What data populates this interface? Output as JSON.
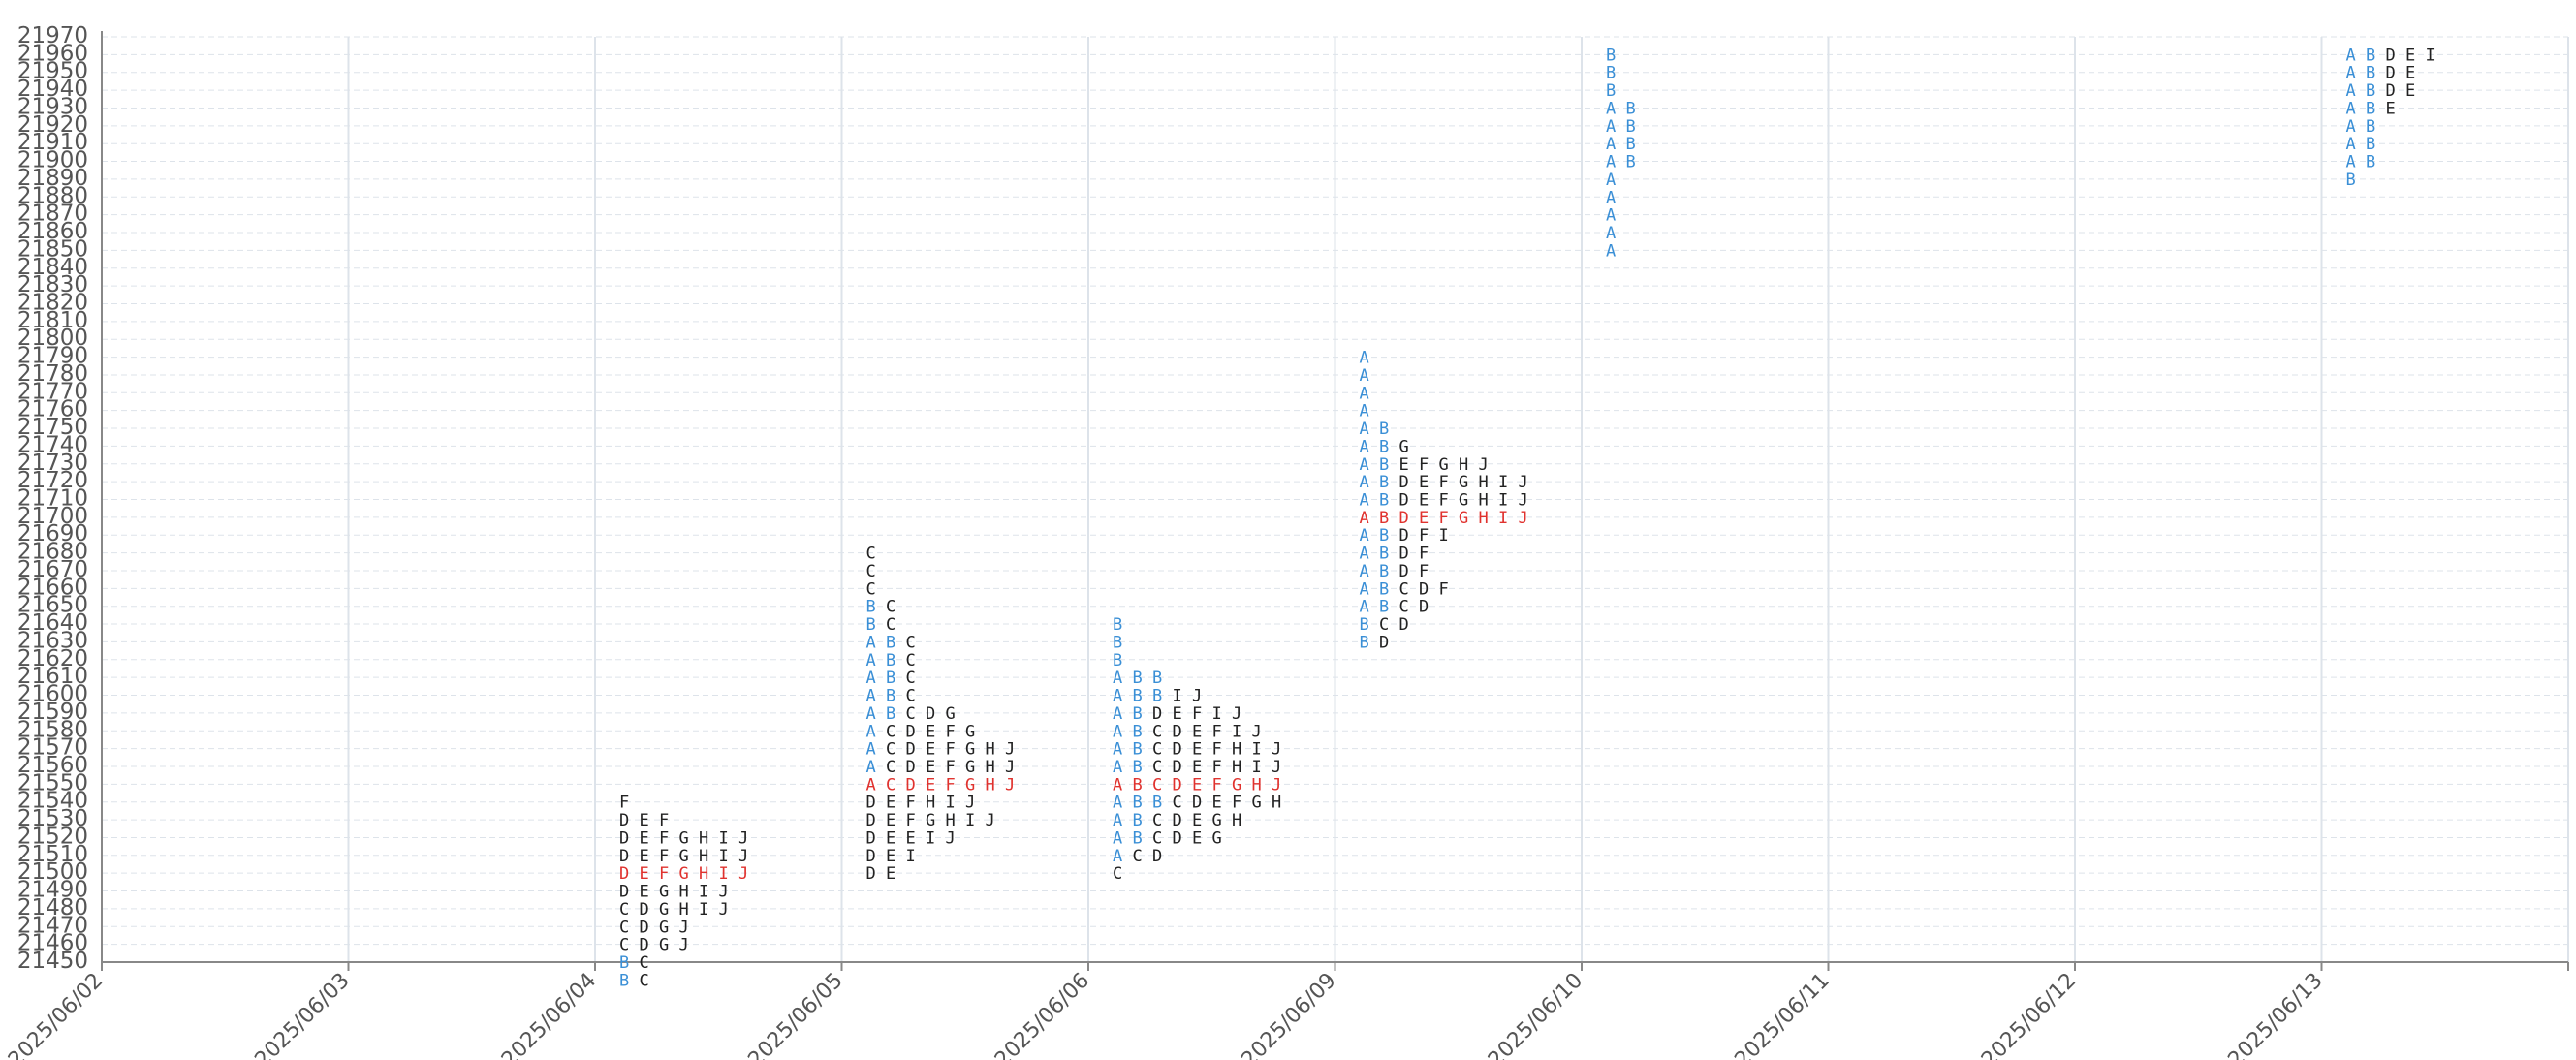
{
  "chart_data": {
    "type": "table",
    "title": "",
    "xlabel": "",
    "ylabel": "",
    "ylim": [
      2145,
      2197
    ],
    "ytick_step": 1,
    "yticks": [
      "2145",
      "2146",
      "2147",
      "2148",
      "2149",
      "2150",
      "2151",
      "2152",
      "2153",
      "2154",
      "2155",
      "2156",
      "2157",
      "2158",
      "2159",
      "2160",
      "2161",
      "2162",
      "2163",
      "2164",
      "2165",
      "2166",
      "2167",
      "2168",
      "2169",
      "2170",
      "2171",
      "2172",
      "2173",
      "2174",
      "2175",
      "2176",
      "2177",
      "2178",
      "2179",
      "2180",
      "2181",
      "2182",
      "2183",
      "2184",
      "2185",
      "2186",
      "2187",
      "2188",
      "2189",
      "2190",
      "2191",
      "2192",
      "2193",
      "2194",
      "2195",
      "2196",
      "2197"
    ],
    "categories": [
      "2025/06/02",
      "2025/06/03",
      "2025/06/04",
      "2025/06/05",
      "2025/06/06",
      "2025/06/09",
      "2025/06/10",
      "2025/06/11",
      "2025/06/12",
      "2025/06/13"
    ],
    "grid": true,
    "colors": {
      "initial_balance": "#3a8fd6",
      "point_of_control": "#e0322e",
      "regular": "#222222",
      "grid": "#dde3ea",
      "axis": "#888888"
    },
    "profiles": [
      {
        "date": "2025/06/04",
        "poc": 2150,
        "rows": [
          {
            "price": 2154,
            "letters": "F"
          },
          {
            "price": 2153,
            "letters": "DEF"
          },
          {
            "price": 2152,
            "letters": "DEFGHIJ"
          },
          {
            "price": 2151,
            "letters": "DEFGHIJ"
          },
          {
            "price": 2150,
            "letters": "DEFGHIJ"
          },
          {
            "price": 2149,
            "letters": "DEGHIJ"
          },
          {
            "price": 2148,
            "letters": "CDGHIJ"
          },
          {
            "price": 2147,
            "letters": "CDGJ"
          },
          {
            "price": 2146,
            "letters": "CDGJ"
          },
          {
            "price": 2145,
            "letters": "BC"
          },
          {
            "price": 2144,
            "letters": "BC"
          }
        ]
      },
      {
        "date": "2025/06/05",
        "poc": 2155,
        "rows": [
          {
            "price": 2168,
            "letters": "C"
          },
          {
            "price": 2167,
            "letters": "C"
          },
          {
            "price": 2166,
            "letters": "C"
          },
          {
            "price": 2165,
            "letters": "BC"
          },
          {
            "price": 2164,
            "letters": "BC"
          },
          {
            "price": 2163,
            "letters": "ABC"
          },
          {
            "price": 2162,
            "letters": "ABC"
          },
          {
            "price": 2161,
            "letters": "ABC"
          },
          {
            "price": 2160,
            "letters": "ABC"
          },
          {
            "price": 2159,
            "letters": "ABCDG"
          },
          {
            "price": 2158,
            "letters": "ACDEFG"
          },
          {
            "price": 2157,
            "letters": "ACDEFGHJ"
          },
          {
            "price": 2156,
            "letters": "ACDEFGHJ"
          },
          {
            "price": 2155,
            "letters": "ACDEFGHJ"
          },
          {
            "price": 2154,
            "letters": "DEFHIJ"
          },
          {
            "price": 2153,
            "letters": "DEFGHIJ"
          },
          {
            "price": 2152,
            "letters": "DEEIJ"
          },
          {
            "price": 2151,
            "letters": "DEI"
          },
          {
            "price": 2150,
            "letters": "DE"
          }
        ]
      },
      {
        "date": "2025/06/06",
        "poc": 2155,
        "rows": [
          {
            "price": 2164,
            "letters": "B"
          },
          {
            "price": 2163,
            "letters": "B"
          },
          {
            "price": 2162,
            "letters": "B"
          },
          {
            "price": 2161,
            "letters": "ABB"
          },
          {
            "price": 2160,
            "letters": "ABBIJ"
          },
          {
            "price": 2159,
            "letters": "ABDEFIJ"
          },
          {
            "price": 2158,
            "letters": "ABCDEFIJ"
          },
          {
            "price": 2157,
            "letters": "ABCDEFHIJ"
          },
          {
            "price": 2156,
            "letters": "ABCDEFHIJ"
          },
          {
            "price": 2155,
            "letters": "ABCDEFGHJ"
          },
          {
            "price": 2154,
            "letters": "ABBCDEFGH"
          },
          {
            "price": 2153,
            "letters": "ABCDEGH"
          },
          {
            "price": 2152,
            "letters": "ABCDEG"
          },
          {
            "price": 2151,
            "letters": "ACD"
          },
          {
            "price": 2150,
            "letters": "C"
          }
        ]
      },
      {
        "date": "2025/06/09",
        "poc": 2170,
        "rows": [
          {
            "price": 2179,
            "letters": "A"
          },
          {
            "price": 2178,
            "letters": "A"
          },
          {
            "price": 2177,
            "letters": "A"
          },
          {
            "price": 2176,
            "letters": "A"
          },
          {
            "price": 2175,
            "letters": "AB"
          },
          {
            "price": 2174,
            "letters": "ABG"
          },
          {
            "price": 2173,
            "letters": "ABEFGHJ"
          },
          {
            "price": 2172,
            "letters": "ABDEFGHIJ"
          },
          {
            "price": 2171,
            "letters": "ABDEFGHIJ"
          },
          {
            "price": 2170,
            "letters": "ABDEFGHIJ"
          },
          {
            "price": 2169,
            "letters": "ABDFI"
          },
          {
            "price": 2168,
            "letters": "ABDF"
          },
          {
            "price": 2167,
            "letters": "ABDF"
          },
          {
            "price": 2166,
            "letters": "ABCDF"
          },
          {
            "price": 2165,
            "letters": "ABCD"
          },
          {
            "price": 2164,
            "letters": "BCD"
          },
          {
            "price": 2163,
            "letters": "BD"
          }
        ]
      },
      {
        "date": "2025/06/10",
        "poc": null,
        "rows": [
          {
            "price": 2196,
            "letters": "B"
          },
          {
            "price": 2195,
            "letters": "B"
          },
          {
            "price": 2194,
            "letters": "B"
          },
          {
            "price": 2193,
            "letters": "AB"
          },
          {
            "price": 2192,
            "letters": "AB"
          },
          {
            "price": 2191,
            "letters": "AB"
          },
          {
            "price": 2190,
            "letters": "AB"
          },
          {
            "price": 2189,
            "letters": "A"
          },
          {
            "price": 2188,
            "letters": "A"
          },
          {
            "price": 2187,
            "letters": "A"
          },
          {
            "price": 2186,
            "letters": "A"
          },
          {
            "price": 2185,
            "letters": "A"
          }
        ]
      },
      {
        "date": "2025/06/13",
        "poc": null,
        "rows": [
          {
            "price": 2196,
            "letters": "ABDEI"
          },
          {
            "price": 2195,
            "letters": "ABDE"
          },
          {
            "price": 2194,
            "letters": "ABDE"
          },
          {
            "price": 2193,
            "letters": "ABE"
          },
          {
            "price": 2192,
            "letters": "AB"
          },
          {
            "price": 2191,
            "letters": "AB"
          },
          {
            "price": 2190,
            "letters": "AB"
          },
          {
            "price": 2189,
            "letters": "B"
          }
        ]
      }
    ]
  }
}
